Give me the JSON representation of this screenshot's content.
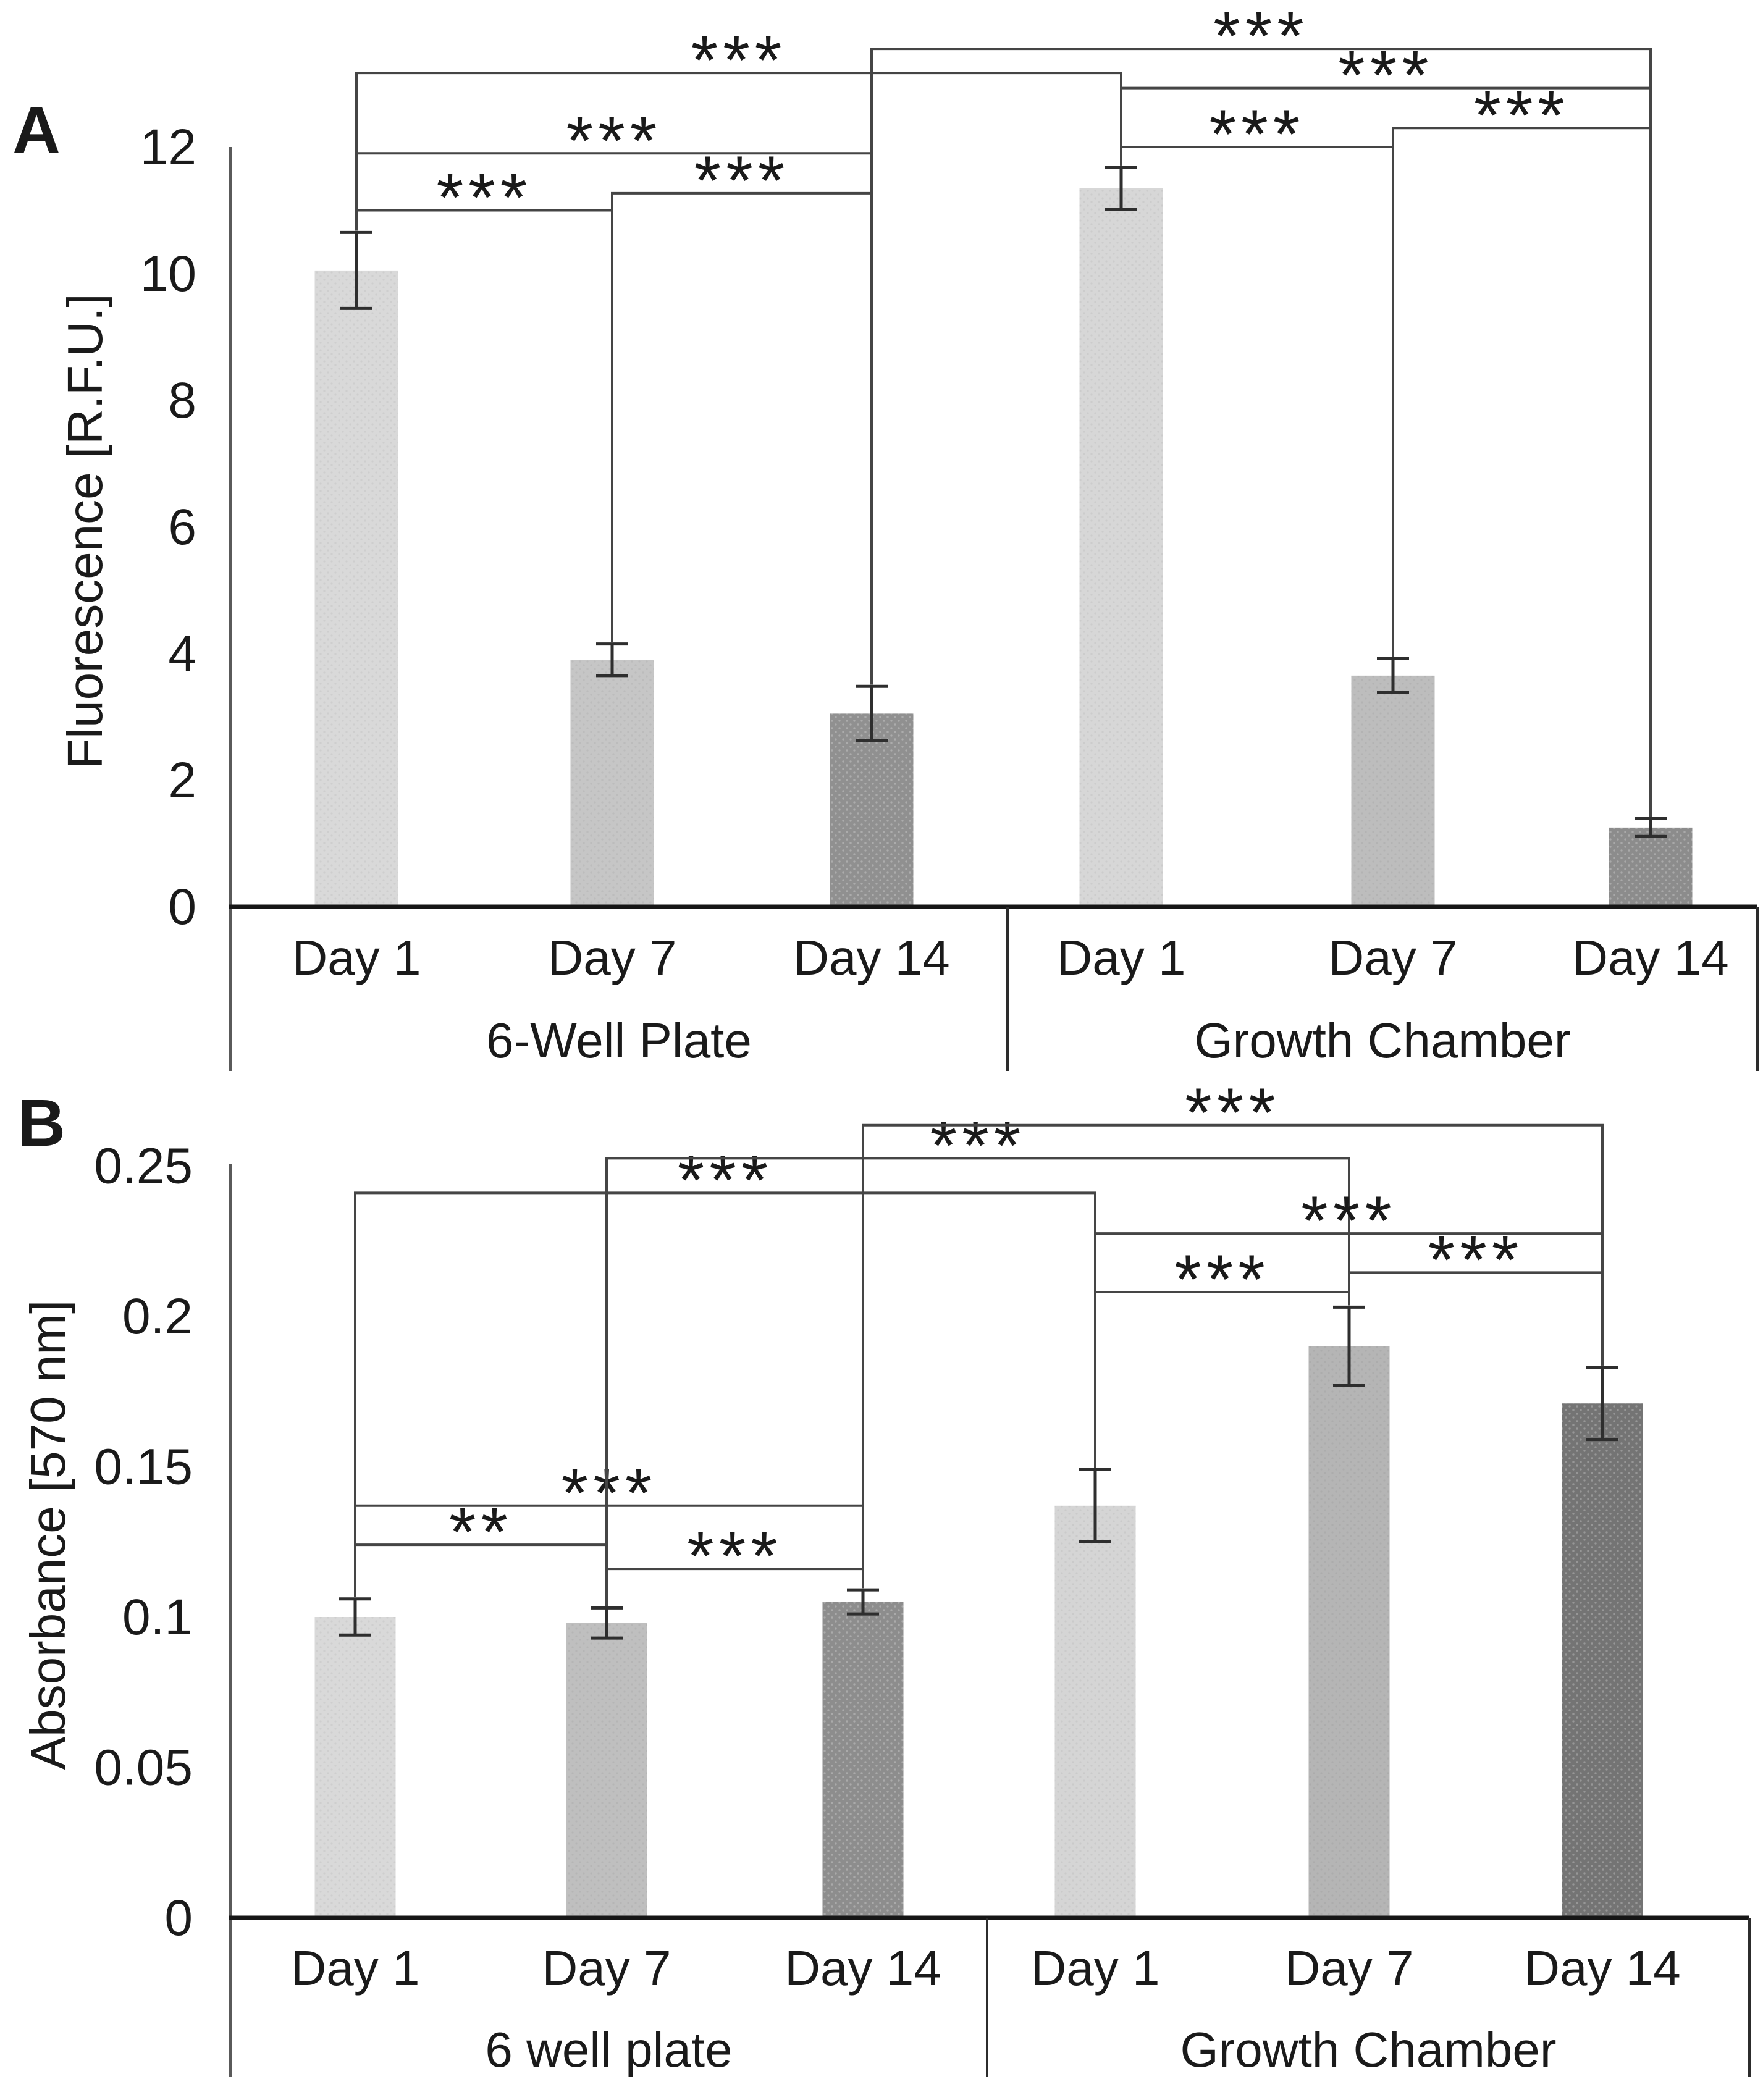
{
  "figure_labels": {
    "panel_a": "A",
    "panel_b": "B"
  },
  "chart_data": [
    {
      "panel": "A",
      "type": "bar",
      "title": "",
      "xlabel": "",
      "ylabel": "Fluorescence [R.F.U.]",
      "ylim": [
        0,
        12
      ],
      "grid": false,
      "legend": "none",
      "yticks": [
        {
          "value": 12,
          "label": "12"
        },
        {
          "value": 10,
          "label": "10"
        },
        {
          "value": 8,
          "label": "8"
        },
        {
          "value": 6,
          "label": "6"
        },
        {
          "value": 4,
          "label": "4"
        },
        {
          "value": 2,
          "label": "2"
        },
        {
          "value": 0,
          "label": "0"
        }
      ],
      "groups": [
        {
          "label": "6-Well Plate"
        },
        {
          "label": "Growth Chamber"
        }
      ],
      "series": [
        {
          "group": "6-Well Plate",
          "day": "Day 1",
          "value": 10.05,
          "error": 0.6
        },
        {
          "group": "6-Well Plate",
          "day": "Day 7",
          "value": 3.9,
          "error": 0.25
        },
        {
          "group": "6-Well Plate",
          "day": "Day 14",
          "value": 3.05,
          "error": 0.43
        },
        {
          "group": "Growth Chamber",
          "day": "Day 1",
          "value": 11.35,
          "error": 0.33
        },
        {
          "group": "Growth Chamber",
          "day": "Day 7",
          "value": 3.65,
          "error": 0.27
        },
        {
          "group": "Growth Chamber",
          "day": "Day 14",
          "value": 1.25,
          "error": 0.14
        }
      ],
      "bar_colors": [
        "#d9d9d9",
        "#c6c6c6",
        "#909090",
        "#d7d7d7",
        "#bdbdbd",
        "#8c8c8c"
      ],
      "significance_brackets": [
        {
          "from": 0,
          "to": 1,
          "label": "***",
          "height": 11.0
        },
        {
          "from": 1,
          "to": 2,
          "label": "***",
          "height": 11.27
        },
        {
          "from": 0,
          "to": 2,
          "label": "***",
          "height": 11.9
        },
        {
          "from": 0,
          "to": 3,
          "label": "***",
          "height": 13.17
        },
        {
          "from": 2,
          "to": 5,
          "label": "***",
          "height": 13.55
        },
        {
          "from": 3,
          "to": 4,
          "label": "***",
          "height": 12.0
        },
        {
          "from": 4,
          "to": 5,
          "label": "***",
          "height": 12.3
        },
        {
          "from": 3,
          "to": 5,
          "label": "***",
          "height": 12.93
        }
      ]
    },
    {
      "panel": "B",
      "type": "bar",
      "title": "",
      "xlabel": "",
      "ylabel": "Absorbance [570 nm]",
      "ylim": [
        0,
        0.25
      ],
      "grid": false,
      "legend": "none",
      "yticks": [
        {
          "value": 0.25,
          "label": "0.25"
        },
        {
          "value": 0.2,
          "label": "0.2"
        },
        {
          "value": 0.15,
          "label": "0.15"
        },
        {
          "value": 0.1,
          "label": "0.1"
        },
        {
          "value": 0.05,
          "label": "0.05"
        },
        {
          "value": 0,
          "label": "0"
        }
      ],
      "groups": [
        {
          "label": "6 well plate"
        },
        {
          "label": "Growth Chamber"
        }
      ],
      "series": [
        {
          "group": "6 well plate",
          "day": "Day 1",
          "value": 0.1,
          "error": 0.006
        },
        {
          "group": "6 well plate",
          "day": "Day 7",
          "value": 0.098,
          "error": 0.005
        },
        {
          "group": "6 well plate",
          "day": "Day 14",
          "value": 0.105,
          "error": 0.004
        },
        {
          "group": "Growth Chamber",
          "day": "Day 1",
          "value": 0.137,
          "error": 0.012
        },
        {
          "group": "Growth Chamber",
          "day": "Day 7",
          "value": 0.19,
          "error": 0.013
        },
        {
          "group": "Growth Chamber",
          "day": "Day 14",
          "value": 0.171,
          "error": 0.012
        }
      ],
      "bar_colors": [
        "#d9d9d9",
        "#bfbfbf",
        "#8d8d8d",
        "#d5d5d5",
        "#b5b5b5",
        "#747474"
      ],
      "significance_brackets": [
        {
          "from": 0,
          "to": 1,
          "label": "**",
          "height": 0.124
        },
        {
          "from": 1,
          "to": 2,
          "label": "***",
          "height": 0.116
        },
        {
          "from": 0,
          "to": 2,
          "label": "***",
          "height": 0.137
        },
        {
          "from": 0,
          "to": 3,
          "label": "***",
          "height": 0.241
        },
        {
          "from": 1,
          "to": 4,
          "label": "***",
          "height": 0.2525
        },
        {
          "from": 2,
          "to": 5,
          "label": "***",
          "height": 0.2635
        },
        {
          "from": 3,
          "to": 4,
          "label": "***",
          "height": 0.208
        },
        {
          "from": 4,
          "to": 5,
          "label": "***",
          "height": 0.2145
        },
        {
          "from": 3,
          "to": 5,
          "label": "***",
          "height": 0.2275
        }
      ]
    }
  ]
}
